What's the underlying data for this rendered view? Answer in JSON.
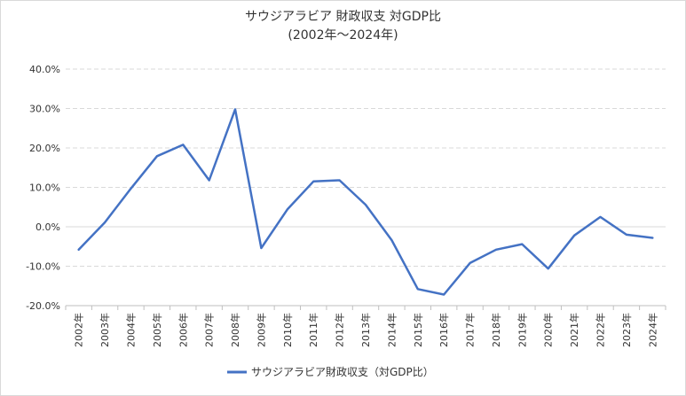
{
  "chart_data": {
    "type": "line",
    "title": "サウジアラビア 財政収支 対GDP比",
    "subtitle": "(2002年～2024年)",
    "categories": [
      "2002年",
      "2003年",
      "2004年",
      "2005年",
      "2006年",
      "2007年",
      "2008年",
      "2009年",
      "2010年",
      "2011年",
      "2012年",
      "2013年",
      "2014年",
      "2015年",
      "2016年",
      "2017年",
      "2018年",
      "2019年",
      "2020年",
      "2021年",
      "2022年",
      "2023年",
      "2024年"
    ],
    "series": [
      {
        "name": "サウジアラビア財政収支（対GDP比）",
        "color": "#4472c4",
        "values": [
          -5.8,
          1.1,
          9.7,
          17.9,
          20.8,
          11.8,
          29.8,
          -5.4,
          4.4,
          11.5,
          11.8,
          5.6,
          -3.4,
          -15.8,
          -17.2,
          -9.2,
          -5.8,
          -4.4,
          -10.6,
          -2.2,
          2.5,
          -2.0,
          -2.8
        ]
      }
    ],
    "y_ticks": [
      "40.0%",
      "30.0%",
      "20.0%",
      "10.0%",
      "0.0%",
      "-10.0%",
      "-20.0%"
    ],
    "ylim": [
      -20,
      40
    ],
    "y_unit": "%",
    "grid": true,
    "legend_position": "bottom"
  }
}
